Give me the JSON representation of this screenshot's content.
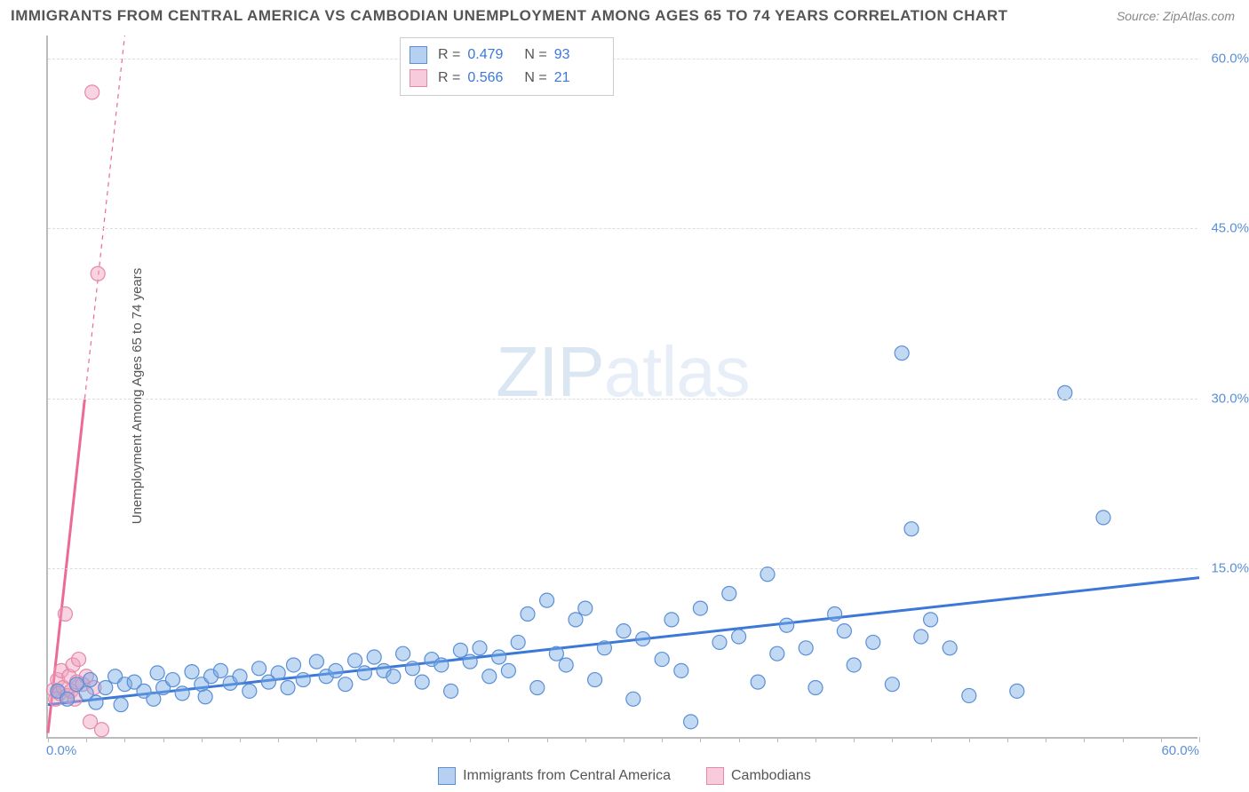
{
  "title": "IMMIGRANTS FROM CENTRAL AMERICA VS CAMBODIAN UNEMPLOYMENT AMONG AGES 65 TO 74 YEARS CORRELATION CHART",
  "source_label": "Source:",
  "source_value": "ZipAtlas.com",
  "watermark_a": "ZIP",
  "watermark_b": "atlas",
  "ylabel": "Unemployment Among Ages 65 to 74 years",
  "chart": {
    "type": "scatter",
    "xlim": [
      0,
      60
    ],
    "ylim": [
      0,
      62
    ],
    "ytick_step": 15,
    "ytick_labels": [
      "15.0%",
      "30.0%",
      "45.0%",
      "60.0%"
    ],
    "ytick_values": [
      15,
      30,
      45,
      60
    ],
    "xtick_min_label": "0.0%",
    "xtick_max_label": "60.0%",
    "xtick_marks": [
      0,
      2,
      4,
      6,
      8,
      10,
      12,
      14,
      16,
      18,
      20,
      22,
      24,
      26,
      28,
      30,
      32,
      34,
      36,
      38,
      40,
      42,
      44,
      46,
      48,
      50,
      52,
      54,
      56,
      58,
      60
    ],
    "background_color": "#ffffff",
    "grid_color": "#dddddd",
    "axis_color": "#bbbbbb",
    "marker_radius": 8,
    "series": [
      {
        "name": "Immigrants from Central America",
        "color_fill": "rgba(120,170,230,0.45)",
        "color_stroke": "#5b8fd6",
        "trend_color": "#3b78d8",
        "trend": {
          "x1": 0,
          "y1": 3.0,
          "x2": 60,
          "y2": 14.2
        },
        "R": "0.479",
        "N": "93",
        "points": [
          [
            0.5,
            4.2
          ],
          [
            1,
            3.5
          ],
          [
            1.5,
            4.8
          ],
          [
            2,
            4.0
          ],
          [
            2.2,
            5.2
          ],
          [
            2.5,
            3.2
          ],
          [
            3,
            4.5
          ],
          [
            3.5,
            5.5
          ],
          [
            3.8,
            3.0
          ],
          [
            4,
            4.8
          ],
          [
            4.5,
            5.0
          ],
          [
            5,
            4.2
          ],
          [
            5.5,
            3.5
          ],
          [
            5.7,
            5.8
          ],
          [
            6,
            4.5
          ],
          [
            6.5,
            5.2
          ],
          [
            7,
            4.0
          ],
          [
            7.5,
            5.9
          ],
          [
            8,
            4.8
          ],
          [
            8.2,
            3.7
          ],
          [
            8.5,
            5.5
          ],
          [
            9,
            6.0
          ],
          [
            9.5,
            4.9
          ],
          [
            10,
            5.5
          ],
          [
            10.5,
            4.2
          ],
          [
            11,
            6.2
          ],
          [
            11.5,
            5.0
          ],
          [
            12,
            5.8
          ],
          [
            12.5,
            4.5
          ],
          [
            12.8,
            6.5
          ],
          [
            13.3,
            5.2
          ],
          [
            14,
            6.8
          ],
          [
            14.5,
            5.5
          ],
          [
            15,
            6.0
          ],
          [
            15.5,
            4.8
          ],
          [
            16,
            6.9
          ],
          [
            16.5,
            5.8
          ],
          [
            17,
            7.2
          ],
          [
            17.5,
            6.0
          ],
          [
            18,
            5.5
          ],
          [
            18.5,
            7.5
          ],
          [
            19,
            6.2
          ],
          [
            19.5,
            5.0
          ],
          [
            20,
            7.0
          ],
          [
            20.5,
            6.5
          ],
          [
            21,
            4.2
          ],
          [
            21.5,
            7.8
          ],
          [
            22,
            6.8
          ],
          [
            22.5,
            8.0
          ],
          [
            23,
            5.5
          ],
          [
            23.5,
            7.2
          ],
          [
            24,
            6.0
          ],
          [
            24.5,
            8.5
          ],
          [
            25,
            11.0
          ],
          [
            25.5,
            4.5
          ],
          [
            26,
            12.2
          ],
          [
            26.5,
            7.5
          ],
          [
            27,
            6.5
          ],
          [
            27.5,
            10.5
          ],
          [
            28,
            11.5
          ],
          [
            28.5,
            5.2
          ],
          [
            29,
            8.0
          ],
          [
            30,
            9.5
          ],
          [
            30.5,
            3.5
          ],
          [
            31,
            8.8
          ],
          [
            32,
            7.0
          ],
          [
            32.5,
            10.5
          ],
          [
            33,
            6.0
          ],
          [
            33.5,
            1.5
          ],
          [
            34,
            11.5
          ],
          [
            35,
            8.5
          ],
          [
            35.5,
            12.8
          ],
          [
            36,
            9.0
          ],
          [
            37,
            5.0
          ],
          [
            37.5,
            14.5
          ],
          [
            38,
            7.5
          ],
          [
            38.5,
            10.0
          ],
          [
            39.5,
            8.0
          ],
          [
            40,
            4.5
          ],
          [
            41,
            11.0
          ],
          [
            41.5,
            9.5
          ],
          [
            42,
            6.5
          ],
          [
            43,
            8.5
          ],
          [
            44,
            4.8
          ],
          [
            44.5,
            34.0
          ],
          [
            45,
            18.5
          ],
          [
            45.5,
            9.0
          ],
          [
            46,
            10.5
          ],
          [
            47,
            8.0
          ],
          [
            48,
            3.8
          ],
          [
            50.5,
            4.2
          ],
          [
            53,
            30.5
          ],
          [
            55,
            19.5
          ]
        ]
      },
      {
        "name": "Cambodians",
        "color_fill": "rgba(240,160,190,0.45)",
        "color_stroke": "#e688a8",
        "trend_color": "#ec6a97",
        "trend": {
          "x1": 0,
          "y1": 0.5,
          "x2": 4.0,
          "y2": 62
        },
        "R": "0.566",
        "N": "21",
        "points": [
          [
            0.3,
            4.3
          ],
          [
            0.4,
            3.5
          ],
          [
            0.5,
            5.2
          ],
          [
            0.6,
            4.0
          ],
          [
            0.7,
            6.0
          ],
          [
            0.8,
            4.5
          ],
          [
            0.9,
            11.0
          ],
          [
            1.0,
            3.8
          ],
          [
            1.1,
            5.5
          ],
          [
            1.2,
            4.2
          ],
          [
            1.3,
            6.5
          ],
          [
            1.4,
            3.5
          ],
          [
            1.5,
            5.0
          ],
          [
            1.6,
            7.0
          ],
          [
            1.8,
            4.8
          ],
          [
            2.0,
            5.5
          ],
          [
            2.2,
            1.5
          ],
          [
            2.4,
            4.5
          ],
          [
            2.8,
            0.8
          ],
          [
            2.3,
            57.0
          ],
          [
            2.6,
            41.0
          ]
        ]
      }
    ]
  },
  "legend_top": [
    {
      "swatch": "blue",
      "R_lbl": "R =",
      "R": "0.479",
      "N_lbl": "N =",
      "N": "93"
    },
    {
      "swatch": "pink",
      "R_lbl": "R =",
      "R": "0.566",
      "N_lbl": "N =",
      "N": "21"
    }
  ],
  "legend_bottom": [
    {
      "swatch": "blue",
      "label": "Immigrants from Central America"
    },
    {
      "swatch": "pink",
      "label": "Cambodians"
    }
  ]
}
